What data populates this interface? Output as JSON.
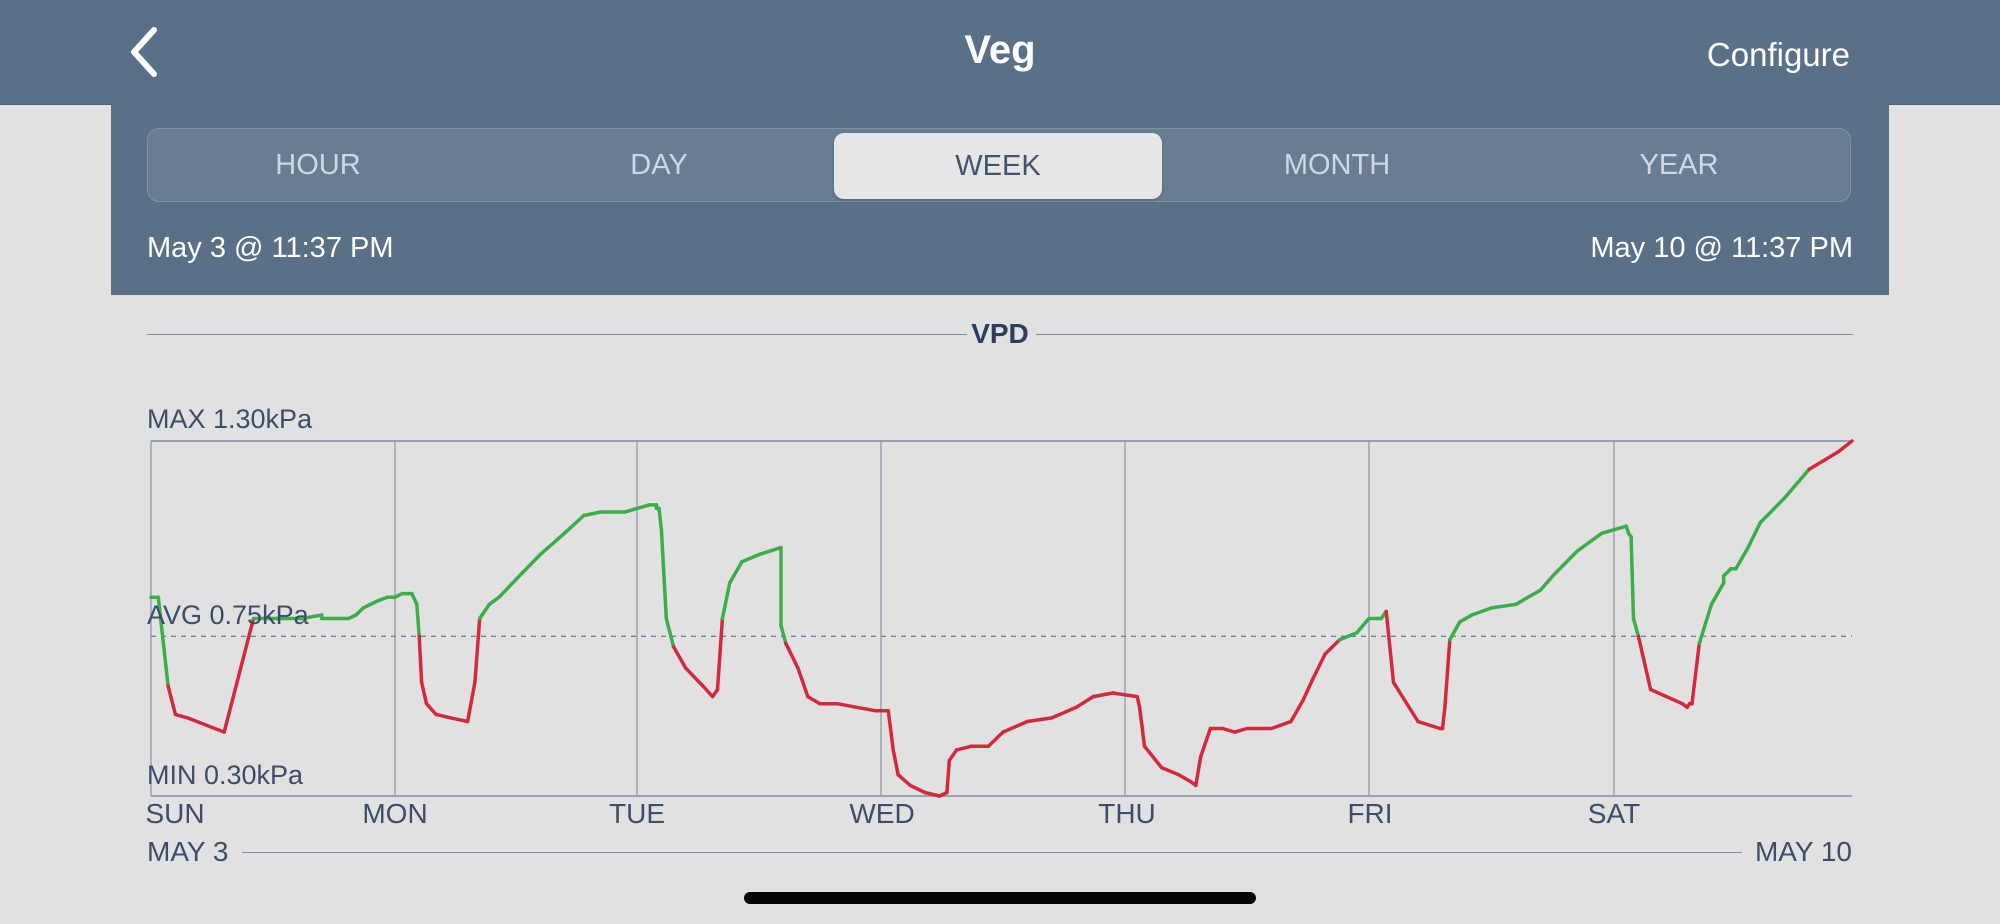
{
  "header": {
    "back_icon": "chevron-left-icon",
    "title": "Veg",
    "configure_label": "Configure"
  },
  "range_tabs": {
    "items": [
      {
        "label": "HOUR"
      },
      {
        "label": "DAY"
      },
      {
        "label": "WEEK"
      },
      {
        "label": "MONTH"
      },
      {
        "label": "YEAR"
      }
    ],
    "selected": "WEEK"
  },
  "range": {
    "start": "May 3 @ 11:37 PM",
    "end": "May 10 @ 11:37 PM"
  },
  "colors": {
    "header_bg": "#5a7087",
    "in_range": "#3cad48",
    "out_of_range": "#d22a3c",
    "text": "#3c4e6c"
  },
  "chart_data": {
    "type": "line",
    "title": "VPD",
    "unit": "kPa",
    "max_label": "MAX 1.30kPa",
    "avg_label": "AVG 0.75kPa",
    "min_label": "MIN 0.30kPa",
    "ylim": [
      0.3,
      1.3
    ],
    "avg": 0.75,
    "day_labels": [
      "SUN",
      "MON",
      "TUE",
      "WED",
      "THU",
      "FRI",
      "SAT"
    ],
    "start_date": "MAY 3",
    "end_date": "MAY 10",
    "x": [
      0.0,
      0.03,
      0.07,
      0.1,
      0.15,
      0.3,
      0.42,
      0.52,
      0.62,
      0.7,
      0.7,
      0.75,
      0.78,
      0.81,
      0.84,
      0.87,
      0.9,
      0.93,
      0.97,
      1.0,
      1.03,
      1.07,
      1.09,
      1.1,
      1.11,
      1.13,
      1.17,
      1.23,
      1.3,
      1.33,
      1.35,
      1.39,
      1.43,
      1.5,
      1.6,
      1.7,
      1.78,
      1.85,
      1.95,
      2.05,
      2.08,
      2.08,
      2.09,
      2.1,
      2.12,
      2.15,
      2.2,
      2.27,
      2.31,
      2.33,
      2.35,
      2.38,
      2.43,
      2.5,
      2.59,
      2.59,
      2.61,
      2.66,
      2.7,
      2.75,
      2.82,
      2.9,
      2.98,
      3.03,
      3.05,
      3.07,
      3.12,
      3.18,
      3.24,
      3.27,
      3.28,
      3.31,
      3.37,
      3.44,
      3.5,
      3.6,
      3.7,
      3.8,
      3.87,
      3.95,
      4.05,
      4.06,
      4.08,
      4.15,
      4.22,
      4.27,
      4.29,
      4.31,
      4.35,
      4.4,
      4.45,
      4.5,
      4.6,
      4.68,
      4.73,
      4.77,
      4.82,
      4.88,
      4.95,
      5.0,
      5.03,
      5.05,
      5.06,
      5.07,
      5.1,
      5.2,
      5.29,
      5.3,
      5.31,
      5.33,
      5.37,
      5.42,
      5.5,
      5.6,
      5.7,
      5.75,
      5.85,
      5.95,
      6.05,
      6.06,
      6.07,
      6.08,
      6.1,
      6.15,
      6.28,
      6.3,
      6.31,
      6.32,
      6.35,
      6.4,
      6.45,
      6.45,
      6.48,
      6.5,
      6.55,
      6.6,
      6.7,
      6.8,
      6.92,
      7.0
    ],
    "y": [
      0.86,
      0.86,
      0.61,
      0.53,
      0.52,
      0.48,
      0.8,
      0.8,
      0.8,
      0.81,
      0.8,
      0.8,
      0.8,
      0.8,
      0.81,
      0.83,
      0.84,
      0.85,
      0.86,
      0.86,
      0.87,
      0.87,
      0.84,
      0.75,
      0.62,
      0.56,
      0.53,
      0.52,
      0.51,
      0.62,
      0.8,
      0.84,
      0.86,
      0.91,
      0.98,
      1.04,
      1.09,
      1.1,
      1.1,
      1.12,
      1.12,
      1.11,
      1.11,
      1.05,
      0.8,
      0.72,
      0.66,
      0.61,
      0.58,
      0.6,
      0.8,
      0.9,
      0.96,
      0.98,
      1.0,
      0.78,
      0.73,
      0.66,
      0.58,
      0.56,
      0.56,
      0.55,
      0.54,
      0.54,
      0.43,
      0.36,
      0.33,
      0.31,
      0.3,
      0.31,
      0.4,
      0.43,
      0.44,
      0.44,
      0.48,
      0.51,
      0.52,
      0.55,
      0.58,
      0.59,
      0.58,
      0.55,
      0.44,
      0.38,
      0.36,
      0.34,
      0.33,
      0.41,
      0.49,
      0.49,
      0.48,
      0.49,
      0.49,
      0.51,
      0.57,
      0.63,
      0.7,
      0.74,
      0.76,
      0.8,
      0.8,
      0.8,
      0.81,
      0.82,
      0.62,
      0.51,
      0.49,
      0.49,
      0.55,
      0.74,
      0.79,
      0.81,
      0.83,
      0.84,
      0.88,
      0.92,
      0.99,
      1.04,
      1.06,
      1.04,
      1.03,
      0.8,
      0.75,
      0.6,
      0.56,
      0.55,
      0.56,
      0.56,
      0.73,
      0.84,
      0.9,
      0.92,
      0.94,
      0.94,
      1.0,
      1.07,
      1.14,
      1.22,
      1.27,
      1.3
    ]
  }
}
